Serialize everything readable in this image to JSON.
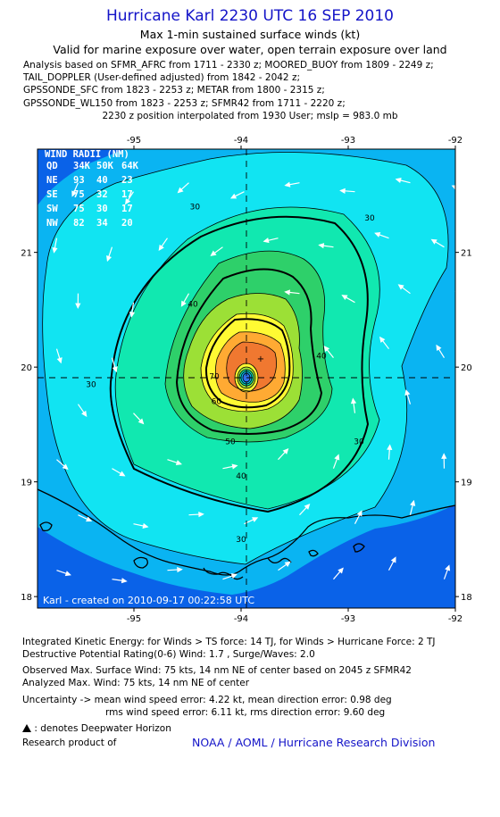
{
  "header": {
    "title": "Hurricane Karl 2230 UTC 16 SEP 2010",
    "subtitle1": "Max 1-min sustained surface winds (kt)",
    "subtitle2": "Valid for marine exposure over water, open terrain exposure over land"
  },
  "analysis_lines": [
    "Analysis based on SFMR_AFRC from 1711 - 2330 z; MOORED_BUOY from 1809 - 2249 z;",
    "TAIL_DOPPLER (User-defined adjusted) from 1842 - 2042 z;",
    "GPSSONDE_SFC from 1823 - 2253 z; METAR from 1800 - 2315 z;",
    "GPSSONDE_WL150 from 1823 - 2253 z; SFMR42 from 1711 - 2220 z;"
  ],
  "position_line": "2230 z position interpolated from 1930 User; mslp = 983.0 mb",
  "chart_data": {
    "type": "contour map",
    "x_axis": {
      "range": [
        -95.9,
        -92.0
      ],
      "ticks": [
        -95,
        -94,
        -93,
        -92
      ],
      "tick_labels": [
        "-95",
        "-94",
        "-93",
        "-92"
      ]
    },
    "y_axis": {
      "range": [
        17.9,
        21.9
      ],
      "ticks": [
        18,
        19,
        20,
        21
      ],
      "tick_labels": [
        "18",
        "19",
        "20",
        "21"
      ]
    },
    "center": {
      "lon": -94.0,
      "lat": 19.9
    },
    "contour_labels": [
      {
        "text": "30",
        "lon": -94.43,
        "lat": 21.4
      },
      {
        "text": "30",
        "lon": -92.8,
        "lat": 21.3
      },
      {
        "text": "30",
        "lon": -95.4,
        "lat": 19.85
      },
      {
        "text": "30",
        "lon": -92.9,
        "lat": 19.35
      },
      {
        "text": "30",
        "lon": -94.0,
        "lat": 18.5
      },
      {
        "text": "40",
        "lon": -94.45,
        "lat": 20.55
      },
      {
        "text": "40",
        "lon": -93.25,
        "lat": 20.1
      },
      {
        "text": "40",
        "lon": -94.0,
        "lat": 19.05
      },
      {
        "text": "50",
        "lon": -94.1,
        "lat": 19.35
      },
      {
        "text": "60",
        "lon": -94.23,
        "lat": 19.7
      },
      {
        "text": "70",
        "lon": -94.25,
        "lat": 19.92
      }
    ],
    "wind_radii": {
      "title": "WIND RADII (NM)",
      "columns": [
        "QD",
        "34K",
        "50K",
        "64K"
      ],
      "rows": [
        [
          "NE",
          "93",
          "40",
          "23"
        ],
        [
          "SE",
          "75",
          "32",
          "17"
        ],
        [
          "SW",
          "75",
          "30",
          "17"
        ],
        [
          "NW",
          "82",
          "34",
          "20"
        ]
      ]
    },
    "created_label": "Karl - created on 2010-09-17 00:22:58 UTC",
    "colors": {
      "lt20": "#0a62e8",
      "20_30": "#0ab4f2",
      "30_40": "#11e4f2",
      "40_50": "#11e8b0",
      "50_60": "#2ed06a",
      "60_64": "#9ce036",
      "64_70": "#fffa33",
      "70_75": "#ffaa33",
      "75_plus": "#f07830",
      "eye_core": "#3070e8"
    }
  },
  "footer": {
    "line1": "Integrated Kinetic Energy:  for Winds > TS force: 14 TJ,  for Winds > Hurricane Force: 2 TJ",
    "line2": "Destructive Potential Rating(0-6)   Wind: 1.7 , Surge/Waves: 2.0",
    "line3": "Observed Max. Surface Wind: 75 kts, 14 nm NE of center based on 2045 z SFMR42",
    "line4": "Analyzed Max. Wind: 75 kts, 14 nm NE of center",
    "line5": "Uncertainty -> mean wind speed error: 4.22 kt,   mean direction error: 0.98 deg",
    "line6": "rms wind speed error: 6.11 kt,   rms direction error: 9.60 deg",
    "line7": ": denotes Deepwater Horizon",
    "line8": "Research product of",
    "noaa": "NOAA / AOML / Hurricane Research Division"
  }
}
